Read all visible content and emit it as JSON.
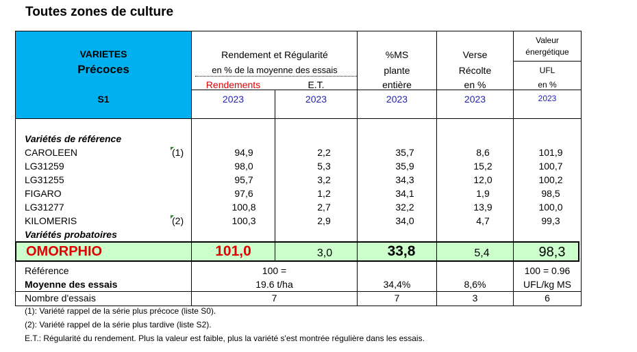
{
  "title": "Toutes zones de culture",
  "header": {
    "varietes": "VARIETES",
    "precoces": "Précoces",
    "series": "S1",
    "rendement_line1": "Rendement et Régularité",
    "rendement_line2": "en % de la moyenne des essais",
    "rendements": "Rendements",
    "et": "E.T.",
    "ms_line1": "%MS",
    "ms_line2": "plante",
    "ms_line3": "entière",
    "verse_line1": "Verse",
    "verse_line2": "Récolte",
    "verse_line3": "en %",
    "valeur_line1": "Valeur",
    "valeur_line2": "énergétique",
    "ufl": "UFL",
    "ufl_unit": "en %",
    "year": "2023",
    "colors": {
      "header_blue": "#00b0f0",
      "rendements_red": "#e00000",
      "year_blue": "#1f1fb4",
      "highlight_green": "#ccffcc",
      "omorphio_red": "#e00000"
    }
  },
  "section_reference": "Variétés de référence",
  "section_probatoires": "Variétés probatoires",
  "rows": [
    {
      "name": "CAROLEEN",
      "note": "(1)",
      "rend": "94,9",
      "et": "2,2",
      "ms": "35,7",
      "verse": "8,6",
      "ufl": "101,9"
    },
    {
      "name": "LG31259",
      "note": "",
      "rend": "98,0",
      "et": "5,3",
      "ms": "35,9",
      "verse": "15,2",
      "ufl": "100,7"
    },
    {
      "name": "LG31255",
      "note": "",
      "rend": "95,7",
      "et": "3,2",
      "ms": "34,3",
      "verse": "12,0",
      "ufl": "100,2"
    },
    {
      "name": "FIGARO",
      "note": "",
      "rend": "97,6",
      "et": "1,2",
      "ms": "34,1",
      "verse": "1,9",
      "ufl": "98,5"
    },
    {
      "name": "LG31277",
      "note": "",
      "rend": "100,8",
      "et": "2,7",
      "ms": "32,2",
      "verse": "13,9",
      "ufl": "100,0"
    },
    {
      "name": "KILOMERIS",
      "note": "(2)",
      "rend": "100,3",
      "et": "2,9",
      "ms": "34,0",
      "verse": "4,7",
      "ufl": "99,3"
    }
  ],
  "highlight": {
    "name": "OMORPHIO",
    "rend": "101,0",
    "et": "3,0",
    "ms": "33,8",
    "verse": "5,4",
    "ufl": "98,3"
  },
  "summary": {
    "reference_label": "Référence",
    "reference_rend": "100 =",
    "reference_ufl": "100 = 0.96",
    "moyenne_label": "Moyenne des essais",
    "moyenne_rend": "19.6 t/ha",
    "moyenne_ms": "34,4%",
    "moyenne_verse": "8,6%",
    "moyenne_ufl": "UFL/kg MS",
    "nombre_label": "Nombre d'essais",
    "nombre_rend": "7",
    "nombre_ms": "7",
    "nombre_verse": "3",
    "nombre_ufl": "6"
  },
  "footnotes": [
    "(1): Variété rappel de la série plus précoce (liste S0).",
    "(2): Variété rappel de la série plus tardive (liste S2).",
    "E.T.: Régularité du rendement. Plus la valeur est faible, plus la variété s'est montrée régulière dans les essais."
  ]
}
